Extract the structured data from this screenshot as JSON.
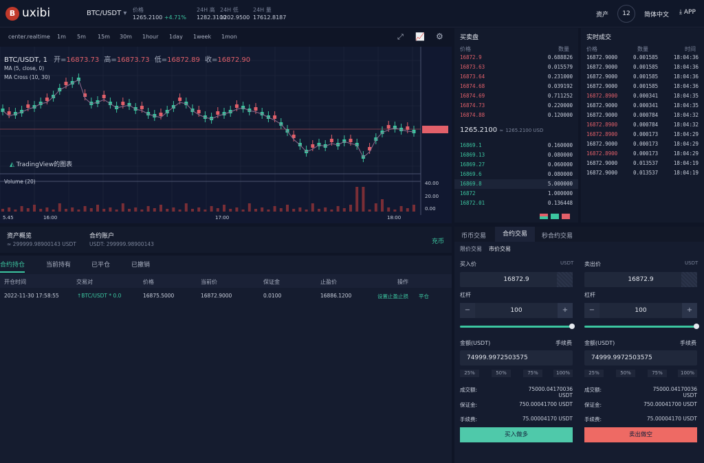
{
  "header": {
    "logo_letter": "B",
    "logo_text": "uxibi",
    "pair": "BTC/USDT",
    "pair_caret": "▾",
    "stats": [
      {
        "label": "价格",
        "value": "1265.2100",
        "extra": "+4.71%"
      },
      {
        "label": "24H 高",
        "value": "1282.3100"
      },
      {
        "label": "24H 低",
        "value": "1202.9500"
      },
      {
        "label": "24H 量",
        "value": "17612.8187"
      }
    ],
    "assets": "资产",
    "badge": "12",
    "language": "简体中文",
    "app": "APP"
  },
  "toolbar": {
    "items": [
      "center.realtime",
      "1m",
      "5m",
      "15m",
      "30m",
      "1hour",
      "1day",
      "1week",
      "1mon"
    ]
  },
  "chart": {
    "symbol": "BTC/USDT, 1",
    "open_label": "开=",
    "open": "16873.73",
    "high_label": "高=",
    "high": "16873.73",
    "low_label": "低=",
    "low": "16872.89",
    "close_label": "收=",
    "close": "16872.90",
    "ma": "MA (5, close, 0)",
    "ma_cross": "MA Cross (10, 30)",
    "watermark": "TradingView的图表",
    "last_price_tag": "",
    "volume_label": "Volume (20)",
    "vol_axis": [
      "40.00",
      "20.00",
      "0.00"
    ],
    "time_axis": [
      "5.45",
      "16:00",
      "17:00",
      "18:00"
    ]
  },
  "chart_data": {
    "type": "candlestick",
    "time_labels": [
      "5.45",
      "16:00",
      "17:00",
      "18:00"
    ],
    "ohlc_last": {
      "open": 16873.73,
      "high": 16873.73,
      "low": 16872.89,
      "close": 16872.9
    },
    "volume_ticks": [
      40,
      20,
      0
    ]
  },
  "orderbook": {
    "title": "买卖盘",
    "col_price": "价格",
    "col_qty": "数量",
    "asks": [
      [
        "16872.9",
        "0.688826"
      ],
      [
        "16873.63",
        "0.015579"
      ],
      [
        "16873.64",
        "0.231000"
      ],
      [
        "16874.68",
        "0.039192"
      ],
      [
        "16874.69",
        "0.711252"
      ],
      [
        "16874.73",
        "0.220000"
      ],
      [
        "16874.88",
        "0.120000"
      ]
    ],
    "mid_price": "1265.2100",
    "mid_approx": "≈",
    "mid_sub": "1265.2100 USD",
    "bids": [
      [
        "16869.1",
        "0.160000"
      ],
      [
        "16869.13",
        "0.080000"
      ],
      [
        "16869.27",
        "0.060000"
      ],
      [
        "16869.6",
        "0.080000"
      ],
      [
        "16869.8",
        "5.000000"
      ],
      [
        "16872",
        "1.000000"
      ],
      [
        "16872.01",
        "0.136448"
      ]
    ]
  },
  "trades": {
    "title": "实时成交",
    "col_price": "价格",
    "col_qty": "数量",
    "col_time": "时间",
    "rows": [
      [
        "16872.9000",
        "0.001585",
        "18:04:36",
        "g"
      ],
      [
        "16872.9000",
        "0.001585",
        "18:04:36",
        "g"
      ],
      [
        "16872.9000",
        "0.001585",
        "18:04:36",
        "g"
      ],
      [
        "16872.9000",
        "0.001585",
        "18:04:36",
        "g"
      ],
      [
        "16872.8900",
        "0.000341",
        "18:04:35",
        "r"
      ],
      [
        "16872.9000",
        "0.000341",
        "18:04:35",
        "g"
      ],
      [
        "16872.9000",
        "0.000784",
        "18:04:32",
        "g"
      ],
      [
        "16872.8900",
        "0.000784",
        "18:04:32",
        "r"
      ],
      [
        "16872.8900",
        "0.000173",
        "18:04:29",
        "r"
      ],
      [
        "16872.9000",
        "0.000173",
        "18:04:29",
        "g"
      ],
      [
        "16872.8900",
        "0.000173",
        "18:04:29",
        "r"
      ],
      [
        "16872.9000",
        "0.013537",
        "18:04:19",
        "g"
      ],
      [
        "16872.9000",
        "0.013537",
        "18:04:19",
        "g"
      ]
    ]
  },
  "assets_panel": {
    "overview": "资产概览",
    "overview_val": "≈ 299999.98900143 USDT",
    "contract": "合约账户",
    "contract_val": "USDT: 299999.98900143",
    "recharge": "充币"
  },
  "positions": {
    "tabs": [
      "合约持仓",
      "当前持有",
      "已平仓",
      "已撤销"
    ],
    "cols": [
      "开仓时间",
      "交易对",
      "价格",
      "当前价",
      "保证金",
      "止盈价",
      "操作"
    ],
    "row": {
      "time": "2022-11-30 17:58:55",
      "pair": "↑BTC/USDT * 0.0",
      "price": "16875.5000",
      "current": "16872.9000",
      "margin": "0.0100",
      "tp": "16886.1200",
      "action1": "设置止盈止损",
      "action2": "平仓"
    }
  },
  "trade_form": {
    "tabs": [
      "币币交易",
      "合约交易",
      "秒合约交易"
    ],
    "subtabs": [
      "限价交易",
      "市价交易"
    ],
    "buy": {
      "price_label": "买入价",
      "unit": "USDT",
      "price": "16872.9",
      "lev_label": "杠杆",
      "lev": "100",
      "minus": "−",
      "plus": "+",
      "amount_label": "金额(USDT)",
      "fee_label": "手续费",
      "amount": "74999.9972503575",
      "pcts": [
        "25%",
        "50%",
        "75%",
        "100%"
      ],
      "deal_label": "成交额:",
      "deal": "75000.04170036 USDT",
      "margin_label": "保证金:",
      "margin": "750.00041700 USDT",
      "fee2_label": "手续费:",
      "fee2": "75.00004170 USDT",
      "button": "买入做多"
    },
    "sell": {
      "price_label": "卖出价",
      "unit": "USDT",
      "price": "16872.9",
      "lev_label": "杠杆",
      "lev": "100",
      "minus": "−",
      "plus": "+",
      "amount_label": "金额(USDT)",
      "fee_label": "手续费",
      "amount": "74999.9972503575",
      "pcts": [
        "25%",
        "50%",
        "75%",
        "100%"
      ],
      "deal_label": "成交额:",
      "deal": "75000.04170036 USDT",
      "margin_label": "保证金:",
      "margin": "750.00041700 USDT",
      "fee2_label": "手续费:",
      "fee2": "75.00004170 USDT",
      "button": "卖出做空"
    }
  },
  "colors": {
    "up": "#3cc6a0",
    "down": "#e2606a",
    "bg": "#0f1526"
  }
}
